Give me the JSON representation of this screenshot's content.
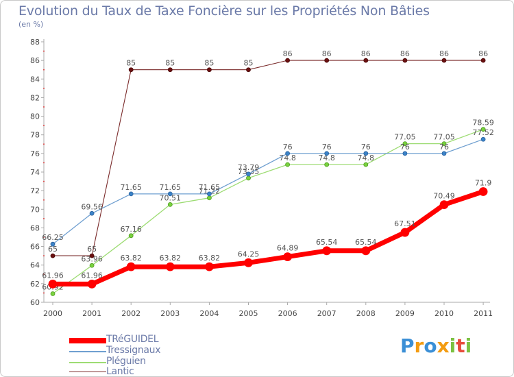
{
  "chart_data": {
    "type": "line",
    "title": "Evolution du Taux de Taxe Foncière sur les Propriétés Non Bâties",
    "ylabel": "(en %)",
    "xlabel": "",
    "ylim": [
      60,
      88
    ],
    "yticks": [
      60,
      62,
      64,
      66,
      68,
      70,
      72,
      74,
      76,
      78,
      80,
      82,
      84,
      86,
      88
    ],
    "categories": [
      "2000",
      "2001",
      "2002",
      "2003",
      "2004",
      "2005",
      "2006",
      "2007",
      "2008",
      "2009",
      "2010",
      "2011"
    ],
    "grid": false,
    "legend": "bottom-left",
    "series": [
      {
        "name": "TRéGUIDEL",
        "color": "#ff0000",
        "values": [
          61.96,
          61.96,
          63.82,
          63.82,
          63.82,
          64.25,
          64.89,
          65.54,
          65.54,
          67.51,
          70.49,
          71.9
        ],
        "labels": [
          "61.96",
          "61.96",
          "63.82",
          "63.82",
          "63.82",
          "64.25",
          "64.89",
          "65.54",
          "65.54",
          "67.51",
          "70.49",
          "71.9"
        ]
      },
      {
        "name": "Tressignaux",
        "color": "#6f9fd0",
        "values": [
          66.25,
          69.56,
          71.65,
          71.65,
          71.65,
          73.79,
          76,
          76,
          76,
          76,
          76,
          77.52
        ],
        "labels": [
          "66.25",
          "69.56",
          "71.65",
          "71.65",
          "71.65",
          "73.79",
          "76",
          "76",
          "76",
          "76",
          "76",
          "77.52"
        ]
      },
      {
        "name": "Pléguien",
        "color": "#9ddc73",
        "values": [
          60.92,
          63.96,
          67.16,
          70.51,
          71.22,
          73.35,
          74.8,
          74.8,
          74.8,
          77.05,
          77.05,
          78.59
        ],
        "labels": [
          "60.92",
          "63.96",
          "67.16",
          "70.51",
          "71.22",
          "73.35",
          "74.8",
          "74.8",
          "74.8",
          "77.05",
          "77.05",
          "78.59"
        ]
      },
      {
        "name": "Lantic",
        "color": "#7a2a2a",
        "values": [
          65,
          65,
          85,
          85,
          85,
          85,
          86,
          86,
          86,
          86,
          86,
          86
        ],
        "labels": [
          "65",
          "65",
          "85",
          "85",
          "85",
          "85",
          "86",
          "86",
          "86",
          "86",
          "86",
          "86"
        ]
      }
    ]
  },
  "branding": {
    "logo_letters": [
      "P",
      "r",
      "o",
      "x",
      "i",
      "t",
      "i"
    ],
    "logo_colors": [
      "#3b8fd6",
      "#f39c12",
      "#3b8fd6",
      "#f39c12",
      "#7cc242",
      "#e74c3c",
      "#7cc242"
    ]
  }
}
